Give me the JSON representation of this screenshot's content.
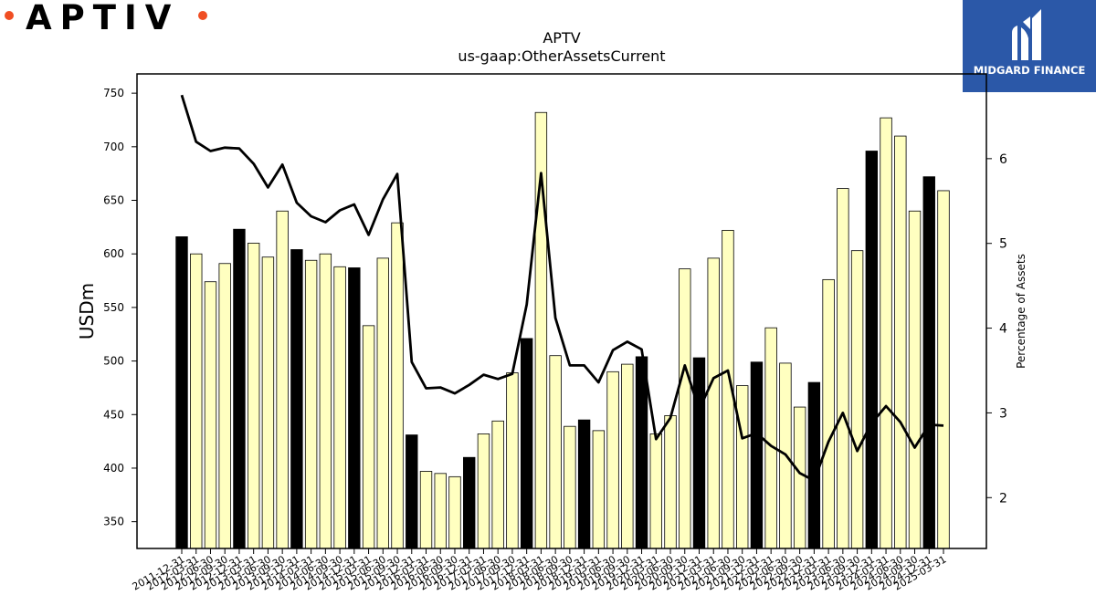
{
  "logos": {
    "left_brand": "APTIV",
    "right_brand": "MIDGARD FINANCE"
  },
  "colors": {
    "bar_q4": "#000000",
    "bar_other": "#ffffc0",
    "line": "#000000",
    "logo_dot": "#f04e23",
    "logo_panel": "#2b58a8"
  },
  "chart_data": {
    "type": "bar",
    "title": "APTV",
    "subtitle": "us-gaap:OtherAssetsCurrent",
    "ylabel": "USDm",
    "y2label": "Percentage of Assets",
    "ylim": [
      325,
      768
    ],
    "y2lim": [
      1.4,
      7.0
    ],
    "yticks": [
      350,
      400,
      450,
      500,
      550,
      600,
      650,
      700,
      750
    ],
    "y2ticks": [
      2,
      3,
      4,
      5,
      6
    ],
    "grid": false,
    "categories": [
      "2011-12-31",
      "2012-03-31",
      "2012-06-30",
      "2012-09-30",
      "2012-12-31",
      "2013-03-31",
      "2013-06-30",
      "2013-09-30",
      "2013-12-31",
      "2014-03-31",
      "2014-06-30",
      "2014-09-30",
      "2014-12-31",
      "2015-03-31",
      "2015-06-30",
      "2015-09-30",
      "2015-12-31",
      "2016-03-31",
      "2016-06-30",
      "2016-09-30",
      "2016-12-31",
      "2017-03-31",
      "2017-06-30",
      "2017-09-30",
      "2017-12-31",
      "2018-03-31",
      "2018-06-30",
      "2018-09-30",
      "2018-12-31",
      "2019-03-31",
      "2019-06-30",
      "2019-09-30",
      "2019-12-31",
      "2020-03-31",
      "2020-06-30",
      "2020-09-30",
      "2020-12-31",
      "2021-03-31",
      "2021-06-30",
      "2021-09-30",
      "2021-12-31",
      "2022-03-31",
      "2022-06-30",
      "2022-09-30",
      "2022-12-31",
      "2023-03-31",
      "2023-06-30",
      "2023-09-30",
      "2023-12-31",
      "2024-03-31",
      "2024-06-30",
      "2024-09-30",
      "2024-12-31",
      "2025-03-31"
    ],
    "series": [
      {
        "type": "bar",
        "axis": "left",
        "values": [
          616,
          600,
          574,
          591,
          623,
          610,
          597,
          640,
          604,
          594,
          600,
          588,
          587,
          533,
          596,
          629,
          431,
          397,
          395,
          392,
          410,
          432,
          444,
          489,
          521,
          732,
          505,
          439,
          445,
          435,
          490,
          497,
          504,
          432,
          449,
          586,
          503,
          596,
          622,
          477,
          499,
          531,
          498,
          457,
          480,
          576,
          661,
          603,
          696,
          727,
          710,
          640,
          672,
          659
        ]
      },
      {
        "type": "line",
        "axis": "right",
        "values": [
          6.75,
          6.2,
          6.09,
          6.13,
          6.12,
          5.94,
          5.66,
          5.93,
          5.48,
          5.32,
          5.25,
          5.39,
          5.46,
          5.1,
          5.52,
          5.82,
          3.6,
          3.29,
          3.3,
          3.23,
          3.33,
          3.45,
          3.4,
          3.46,
          4.28,
          5.83,
          4.12,
          3.56,
          3.56,
          3.36,
          3.74,
          3.84,
          3.75,
          2.69,
          2.94,
          3.56,
          3.04,
          3.41,
          3.5,
          2.7,
          2.76,
          2.61,
          2.51,
          2.29,
          2.2,
          2.66,
          3.0,
          2.55,
          2.88,
          3.08,
          2.89,
          2.59,
          2.86,
          2.85
        ]
      }
    ]
  }
}
